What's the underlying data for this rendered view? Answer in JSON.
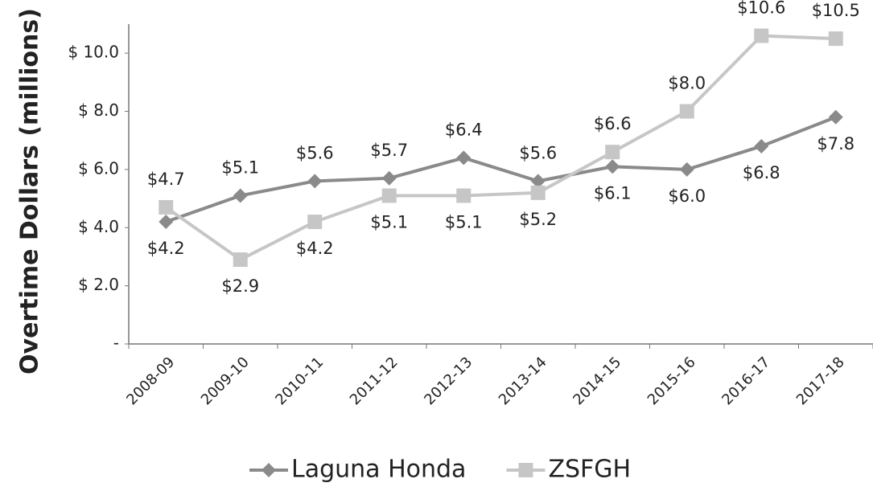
{
  "chart_data": {
    "type": "line",
    "y_label": "Overtime Dollars (millions)",
    "categories": [
      "2008-09",
      "2009-10",
      "2010-11",
      "2011-12",
      "2012-13",
      "2013-14",
      "2014-15",
      "2015-16",
      "2016-17",
      "2017-18"
    ],
    "series": [
      {
        "name": "Laguna Honda",
        "color": "#8a8a8a",
        "marker": "diamond",
        "values": [
          4.2,
          5.1,
          5.6,
          5.7,
          6.4,
          5.6,
          6.1,
          6.0,
          6.8,
          7.8
        ],
        "value_labels": [
          "$4.2",
          "$5.1",
          "$5.6",
          "$5.7",
          "$6.4",
          "$5.6",
          "$6.1",
          "$6.0",
          "$6.8",
          "$7.8"
        ]
      },
      {
        "name": "ZSFGH",
        "color": "#c6c6c6",
        "marker": "square",
        "values": [
          4.7,
          2.9,
          4.2,
          5.1,
          5.1,
          5.2,
          6.6,
          8.0,
          10.6,
          10.5
        ],
        "value_labels": [
          "$4.7",
          "$2.9",
          "$4.2",
          "$5.1",
          "$5.1",
          "$5.2",
          "$6.6",
          "$8.0",
          "$10.6",
          "$10.5"
        ]
      }
    ],
    "ylim": [
      0,
      11
    ],
    "yticks": [
      {
        "value": 0,
        "label": "-"
      },
      {
        "value": 2,
        "label": "$ 2.0"
      },
      {
        "value": 4,
        "label": "$ 4.0"
      },
      {
        "value": 6,
        "label": "$ 6.0"
      },
      {
        "value": 8,
        "label": "$ 8.0"
      },
      {
        "value": 10,
        "label": "$ 10.0"
      }
    ],
    "legend": "bottom",
    "grid": false
  }
}
